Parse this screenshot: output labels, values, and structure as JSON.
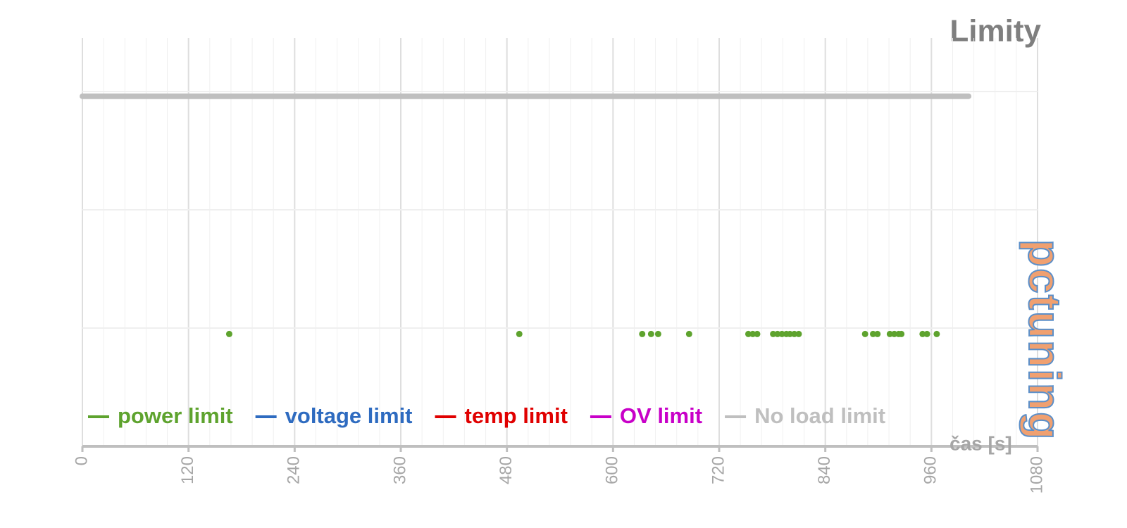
{
  "chart_data": {
    "type": "scatter",
    "title": "Limity",
    "xlabel": "čas [s]",
    "xlim": [
      0,
      1080
    ],
    "xticks": [
      0,
      120,
      240,
      360,
      480,
      600,
      720,
      840,
      960,
      1080
    ],
    "xminor": 24,
    "ylim": [
      0,
      3.5
    ],
    "yticks": [
      1,
      2,
      3
    ],
    "show_ytick_labels": false,
    "grid": true,
    "legend": "bottom",
    "watermark": "pctuning",
    "series": [
      {
        "name": "power limit",
        "color": "#5ea32e",
        "mode": "markers",
        "x": [
          166,
          494,
          633,
          643,
          651,
          686,
          753,
          758,
          763,
          781,
          786,
          791,
          796,
          800,
          805,
          810,
          885,
          894,
          899,
          913,
          918,
          923,
          926,
          950,
          955,
          966
        ],
        "values": [
          0.95,
          0.95,
          0.95,
          0.95,
          0.95,
          0.95,
          0.95,
          0.95,
          0.95,
          0.95,
          0.95,
          0.95,
          0.95,
          0.95,
          0.95,
          0.95,
          0.95,
          0.95,
          0.95,
          0.95,
          0.95,
          0.95,
          0.95,
          0.95,
          0.95,
          0.95
        ]
      },
      {
        "name": "voltage limit",
        "color": "#2e6bc0",
        "mode": "markers",
        "x": [],
        "values": []
      },
      {
        "name": "temp limit",
        "color": "#e00000",
        "mode": "markers",
        "x": [],
        "values": []
      },
      {
        "name": "OV limit",
        "color": "#c800c8",
        "mode": "markers",
        "x": [],
        "values": []
      },
      {
        "name": "No load limit",
        "color": "#bfbfbf",
        "mode": "line",
        "x": [
          0,
          1002
        ],
        "values": [
          2.96,
          2.96
        ]
      }
    ]
  }
}
